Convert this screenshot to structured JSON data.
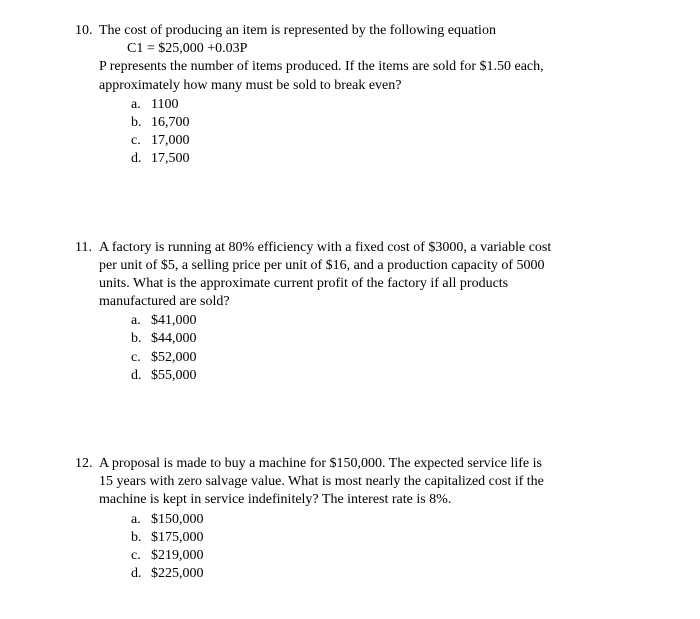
{
  "questions": [
    {
      "number": "10.",
      "lines": [
        "The cost of producing an item is represented by the following equation",
        "C1 = $25,000 +0.03P",
        "P represents the number of items produced.  If the items are sold for $1.50 each,",
        "approximately how many must be sold to break even?"
      ],
      "indent_lines": [
        false,
        true,
        false,
        false
      ],
      "options": [
        {
          "letter": "a.",
          "text": "1100"
        },
        {
          "letter": "b.",
          "text": "16,700"
        },
        {
          "letter": "c.",
          "text": "17,000"
        },
        {
          "letter": "d.",
          "text": "17,500"
        }
      ]
    },
    {
      "number": "11.",
      "lines": [
        "A factory is running at 80% efficiency with a fixed cost of $3000, a variable cost",
        "per unit of $5, a selling price per unit of $16, and a production capacity of 5000",
        "units.  What is the approximate current profit of the factory if all products",
        "manufactured are sold?"
      ],
      "indent_lines": [
        false,
        false,
        false,
        false
      ],
      "options": [
        {
          "letter": "a.",
          "text": "$41,000"
        },
        {
          "letter": "b.",
          "text": "$44,000"
        },
        {
          "letter": "c.",
          "text": "$52,000"
        },
        {
          "letter": "d.",
          "text": "$55,000"
        }
      ]
    },
    {
      "number": "12.",
      "lines": [
        "A proposal is made to buy a machine for $150,000.  The expected service life is",
        "15 years with zero salvage value.  What is most nearly the capitalized cost if the",
        "machine is kept in service indefinitely?  The interest rate is 8%."
      ],
      "indent_lines": [
        false,
        false,
        false
      ],
      "options": [
        {
          "letter": "a.",
          "text": "$150,000"
        },
        {
          "letter": "b.",
          "text": "$175,000"
        },
        {
          "letter": "c.",
          "text": "$219,000"
        },
        {
          "letter": "d.",
          "text": "$225,000"
        }
      ]
    }
  ]
}
